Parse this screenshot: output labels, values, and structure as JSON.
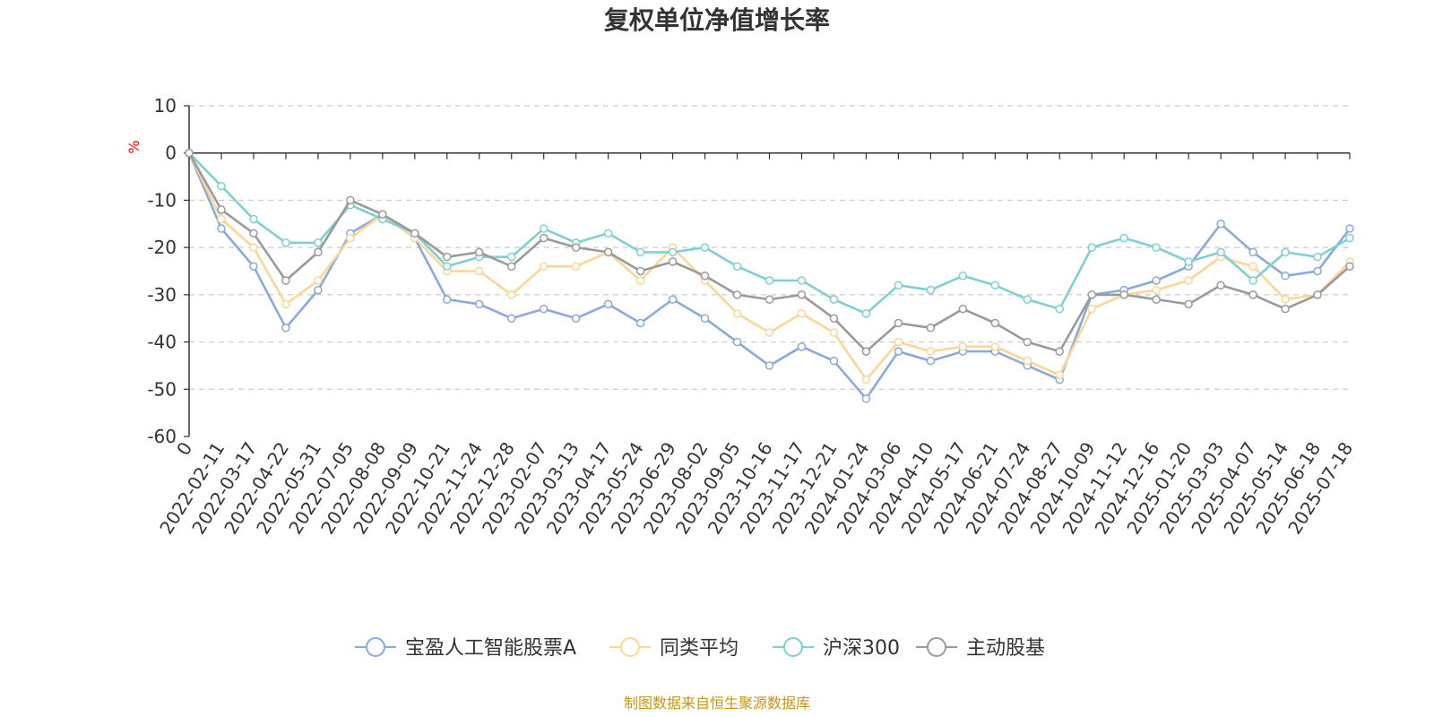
{
  "chart_data": {
    "type": "line",
    "title": "复权单位净值增长率",
    "ylabel": "%",
    "ylim": [
      -60,
      10
    ],
    "yticks": [
      10,
      0,
      -10,
      -20,
      -30,
      -40,
      -50,
      -60
    ],
    "grid": true,
    "legend_position": "bottom",
    "x_labels": [
      "0",
      "2022-02-11",
      "2022-03-17",
      "2022-04-22",
      "2022-05-31",
      "2022-07-05",
      "2022-08-08",
      "2022-09-09",
      "2022-10-21",
      "2022-11-24",
      "2022-12-28",
      "2023-02-07",
      "2023-03-13",
      "2023-04-17",
      "2023-05-24",
      "2023-06-29",
      "2023-08-02",
      "2023-09-05",
      "2023-10-16",
      "2023-11-17",
      "2023-12-21",
      "2024-01-24",
      "2024-03-06",
      "2024-04-10",
      "2024-05-17",
      "2024-06-21",
      "2024-07-24",
      "2024-08-27",
      "2024-10-09",
      "2024-11-12",
      "2024-12-16",
      "2025-01-20",
      "2025-03-03",
      "2025-04-07",
      "2025-05-14",
      "2025-06-18",
      "2025-07-18"
    ],
    "series": [
      {
        "name": "宝盈人工智能股票A",
        "color": "#8aa9dc",
        "values": [
          0,
          -16,
          -24,
          -37,
          -29,
          -17,
          -13,
          -18,
          -31,
          -32,
          -35,
          -33,
          -35,
          -32,
          -36,
          -31,
          -35,
          -40,
          -45,
          -41,
          -44,
          -52,
          -42,
          -44,
          -42,
          -42,
          -45,
          -48,
          -30,
          -29,
          -27,
          -24,
          -15,
          -21,
          -26,
          -25,
          -16
        ]
      },
      {
        "name": "同类平均",
        "color": "#fdd594",
        "values": [
          0,
          -14,
          -20,
          -32,
          -27,
          -18,
          -13,
          -18,
          -25,
          -25,
          -30,
          -24,
          -24,
          -21,
          -27,
          -20,
          -27,
          -34,
          -38,
          -34,
          -38,
          -48,
          -40,
          -42,
          -41,
          -41,
          -44,
          -47,
          -33,
          -30,
          -29,
          -27,
          -22,
          -24,
          -31,
          -30,
          -23
        ]
      },
      {
        "name": "沪深300",
        "color": "#7ed0d3",
        "values": [
          0,
          -7,
          -14,
          -19,
          -19,
          -11,
          -14,
          -17,
          -24,
          -22,
          -22,
          -16,
          -19,
          -17,
          -21,
          -21,
          -20,
          -24,
          -27,
          -27,
          -31,
          -34,
          -28,
          -29,
          -26,
          -28,
          -31,
          -33,
          -20,
          -18,
          -20,
          -23,
          -21,
          -27,
          -21,
          -22,
          -18
        ]
      },
      {
        "name": "主动股基",
        "color": "#9a9a9a",
        "values": [
          0,
          -12,
          -17,
          -27,
          -21,
          -10,
          -13,
          -17,
          -22,
          -21,
          -24,
          -18,
          -20,
          -21,
          -25,
          -23,
          -26,
          -30,
          -31,
          -30,
          -35,
          -42,
          -36,
          -37,
          -33,
          -36,
          -40,
          -42,
          -30,
          -30,
          -31,
          -32,
          -28,
          -30,
          -33,
          -30,
          -24
        ]
      }
    ]
  },
  "legend": {
    "items": [
      "宝盈人工智能股票A",
      "同类平均",
      "沪深300",
      "主动股基"
    ]
  },
  "footer": {
    "source": "制图数据来自恒生聚源数据库",
    "color": "#c8960c"
  },
  "colors": {
    "title": "#333333",
    "grid": "#cccccc",
    "unit": "#ff0000",
    "axis": "#333333"
  }
}
